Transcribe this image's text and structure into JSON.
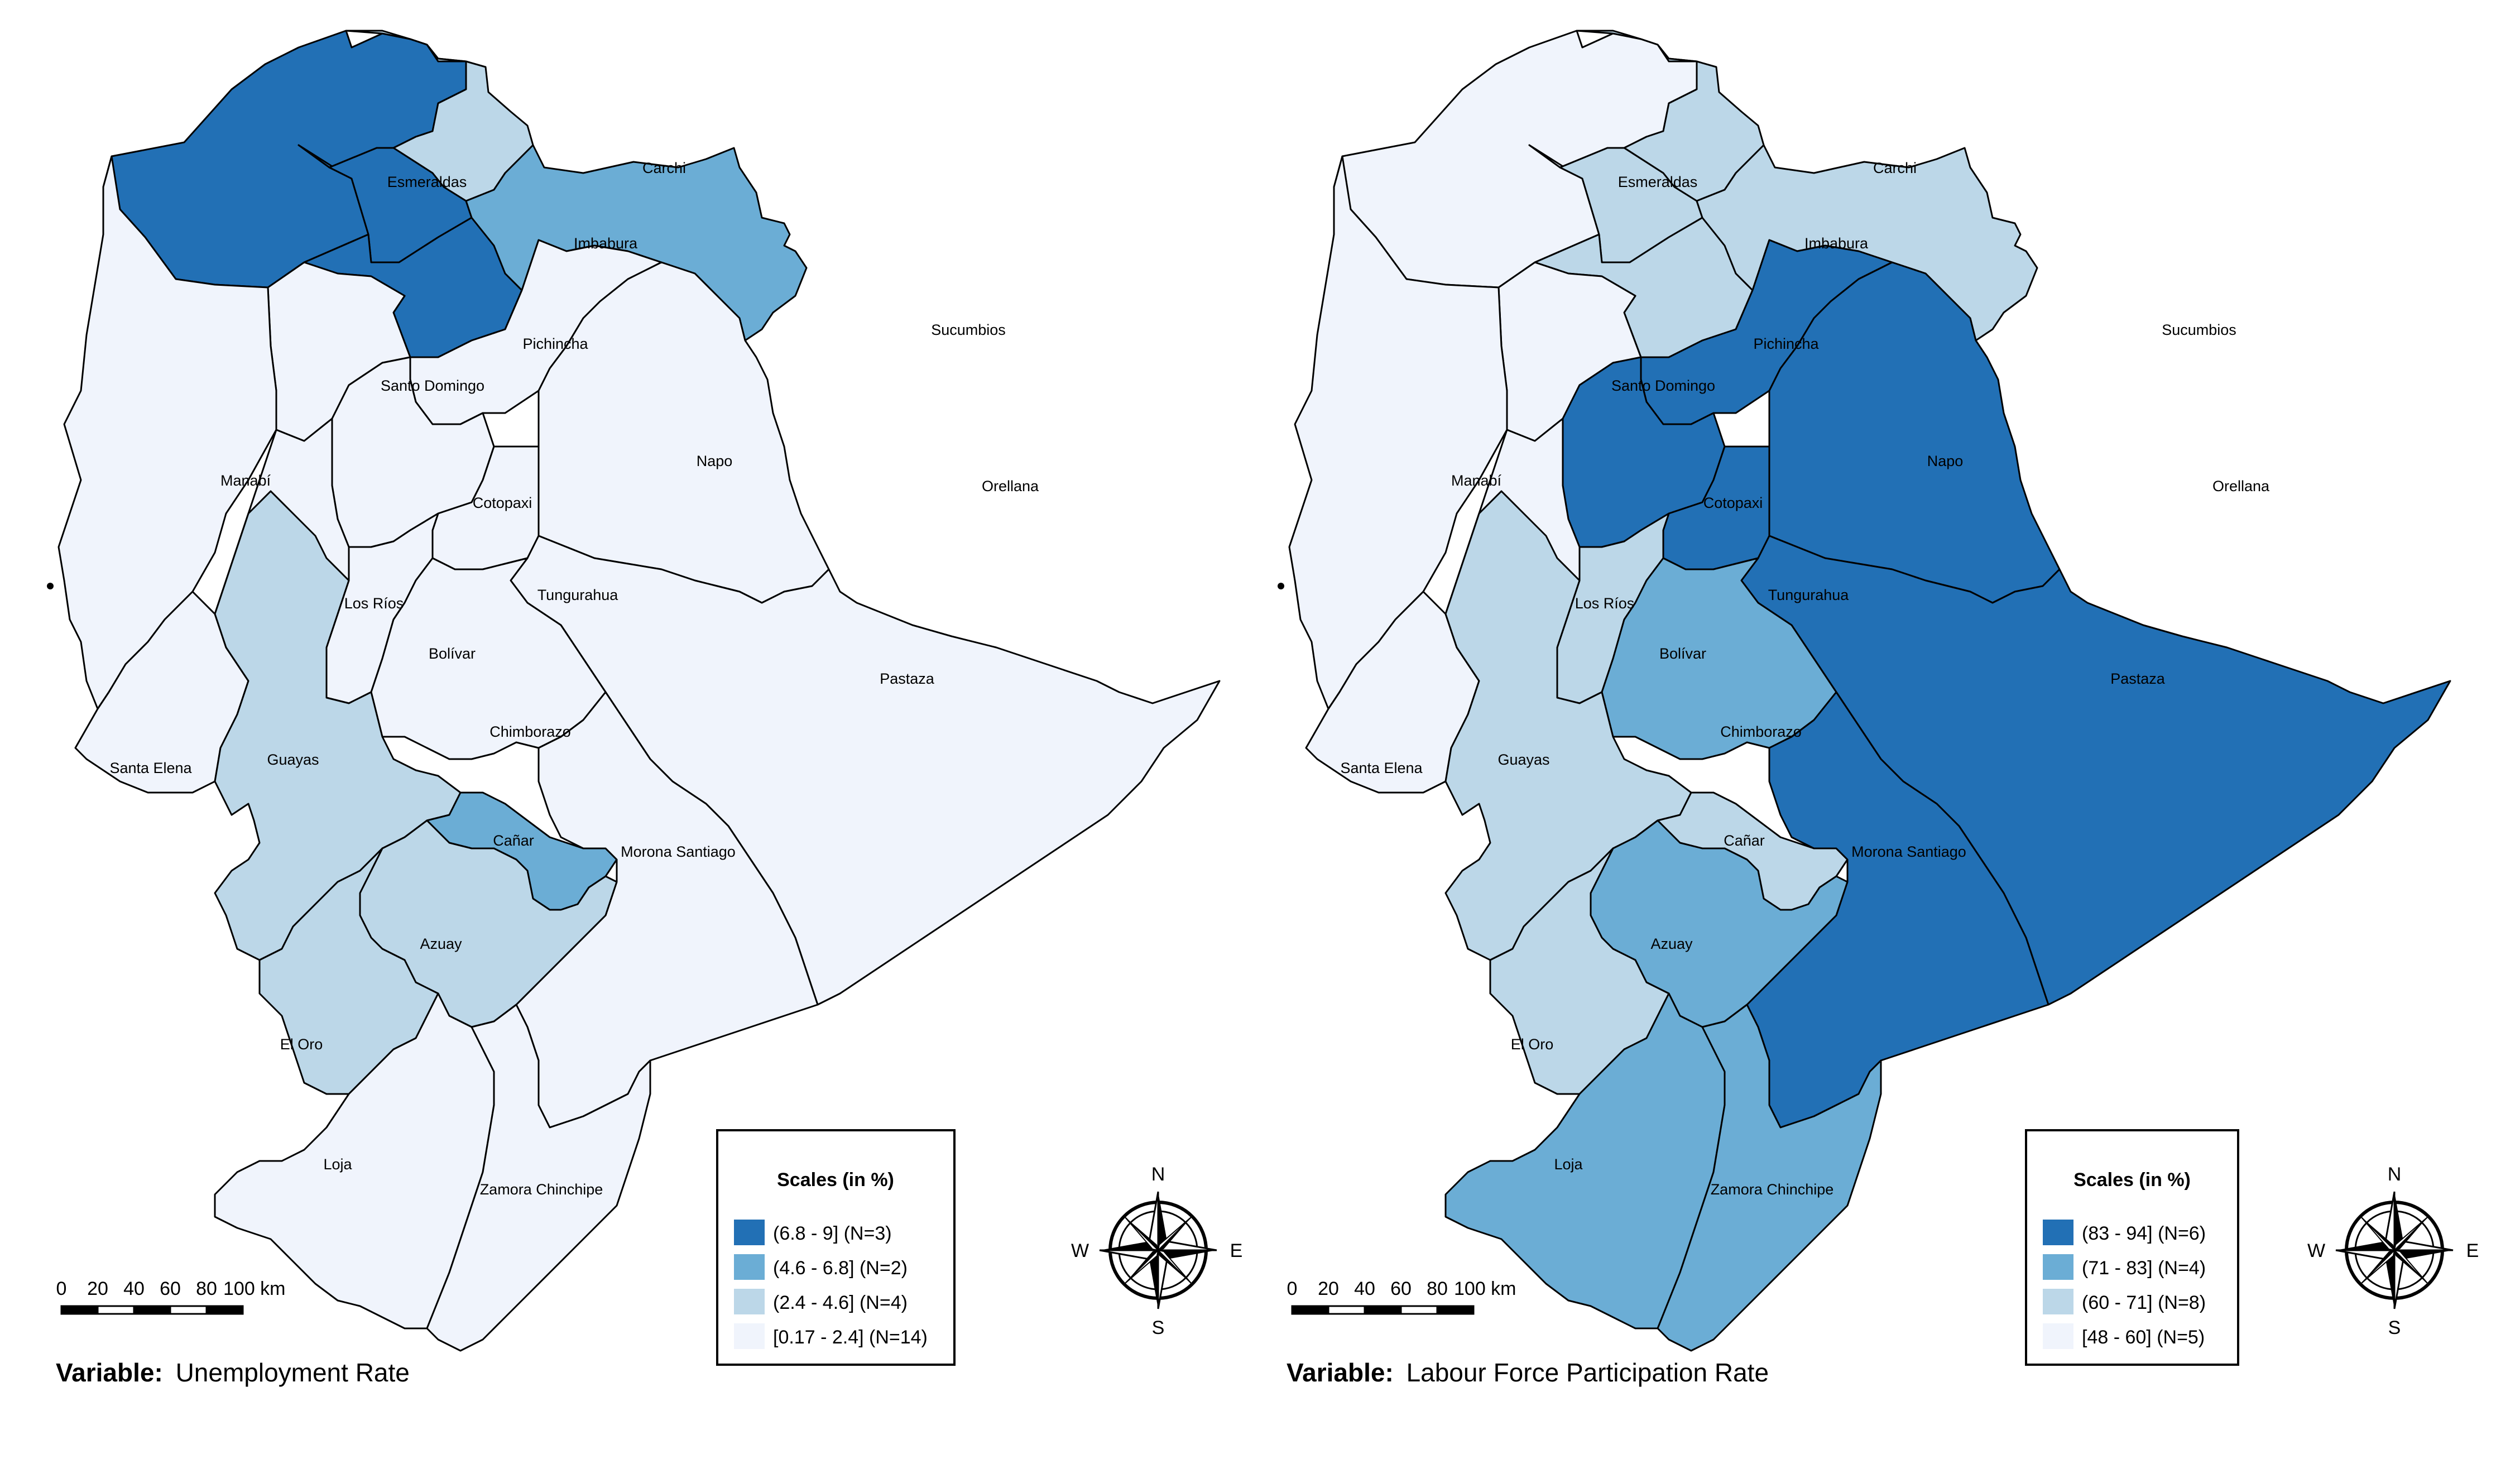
{
  "classes": {
    "c1": "#f0f4fc",
    "c2": "#bcd7e8",
    "c3": "#6badd5",
    "c4": "#2270b5"
  },
  "maps": [
    {
      "variable_label": "Variable:",
      "variable_name": "Unemployment Rate",
      "legend": {
        "title": "Scales (in %)",
        "entries": [
          {
            "label": "(6.8 - 9] (N=3)",
            "color": "#2270b5"
          },
          {
            "label": "(4.6 - 6.8] (N=2)",
            "color": "#6badd5"
          },
          {
            "label": "(2.4 - 4.6] (N=4)",
            "color": "#bcd7e8"
          },
          {
            "label": "[0.17 - 2.4] (N=14)",
            "color": "#f0f4fc"
          }
        ]
      },
      "scale_ticks": [
        "0",
        "20",
        "40",
        "60",
        "80",
        "100 km"
      ],
      "compass": {
        "n": "N",
        "s": "S",
        "e": "E",
        "w": "W"
      },
      "provinces": {
        "esmeraldas": {
          "name": "Esmeraldas",
          "class": "c4"
        },
        "carchi": {
          "name": "Carchi",
          "class": "c2"
        },
        "imbabura": {
          "name": "Imbabura",
          "class": "c4"
        },
        "pichincha": {
          "name": "Pichincha",
          "class": "c4"
        },
        "sucumbios": {
          "name": "Sucumbios",
          "class": "c3"
        },
        "santodomingo": {
          "name": "Santo Domingo",
          "class": "c1"
        },
        "manabi": {
          "name": "Manabí",
          "class": "c1"
        },
        "napo": {
          "name": "Napo",
          "class": "c1"
        },
        "orellana": {
          "name": "Orellana",
          "class": "c1"
        },
        "cotopaxi": {
          "name": "Cotopaxi",
          "class": "c1"
        },
        "losrios": {
          "name": "Los Ríos",
          "class": "c1"
        },
        "tungurahua": {
          "name": "Tungurahua",
          "class": "c1"
        },
        "bolivar": {
          "name": "Bolívar",
          "class": "c1"
        },
        "pastaza": {
          "name": "Pastaza",
          "class": "c1"
        },
        "chimborazo": {
          "name": "Chimborazo",
          "class": "c1"
        },
        "santaelena": {
          "name": "Santa Elena",
          "class": "c1"
        },
        "guayas": {
          "name": "Guayas",
          "class": "c2"
        },
        "canar": {
          "name": "Cañar",
          "class": "c3"
        },
        "morona": {
          "name": "Morona Santiago",
          "class": "c1"
        },
        "azuay": {
          "name": "Azuay",
          "class": "c2"
        },
        "eloro": {
          "name": "El Oro",
          "class": "c2"
        },
        "loja": {
          "name": "Loja",
          "class": "c1"
        },
        "zamora": {
          "name": "Zamora Chinchipe",
          "class": "c1"
        }
      }
    },
    {
      "variable_label": "Variable:",
      "variable_name": "Labour Force Participation Rate",
      "legend": {
        "title": "Scales (in %)",
        "entries": [
          {
            "label": "(83 - 94] (N=6)",
            "color": "#2270b5"
          },
          {
            "label": "(71 - 83] (N=4)",
            "color": "#6badd5"
          },
          {
            "label": "(60 - 71] (N=8)",
            "color": "#bcd7e8"
          },
          {
            "label": "[48 - 60] (N=5)",
            "color": "#f0f4fc"
          }
        ]
      },
      "scale_ticks": [
        "0",
        "20",
        "40",
        "60",
        "80",
        "100 km"
      ],
      "compass": {
        "n": "N",
        "s": "S",
        "e": "E",
        "w": "W"
      },
      "provinces": {
        "esmeraldas": {
          "name": "Esmeraldas",
          "class": "c1"
        },
        "carchi": {
          "name": "Carchi",
          "class": "c2"
        },
        "imbabura": {
          "name": "Imbabura",
          "class": "c2"
        },
        "pichincha": {
          "name": "Pichincha",
          "class": "c2"
        },
        "sucumbios": {
          "name": "Sucumbios",
          "class": "c2"
        },
        "santodomingo": {
          "name": "Santo Domingo",
          "class": "c1"
        },
        "manabi": {
          "name": "Manabí",
          "class": "c1"
        },
        "napo": {
          "name": "Napo",
          "class": "c4"
        },
        "orellana": {
          "name": "Orellana",
          "class": "c4"
        },
        "cotopaxi": {
          "name": "Cotopaxi",
          "class": "c4"
        },
        "losrios": {
          "name": "Los Ríos",
          "class": "c1"
        },
        "tungurahua": {
          "name": "Tungurahua",
          "class": "c4"
        },
        "bolivar": {
          "name": "Bolívar",
          "class": "c2"
        },
        "pastaza": {
          "name": "Pastaza",
          "class": "c4"
        },
        "chimborazo": {
          "name": "Chimborazo",
          "class": "c3"
        },
        "santaelena": {
          "name": "Santa Elena",
          "class": "c1"
        },
        "guayas": {
          "name": "Guayas",
          "class": "c2"
        },
        "canar": {
          "name": "Cañar",
          "class": "c2"
        },
        "morona": {
          "name": "Morona Santiago",
          "class": "c4"
        },
        "azuay": {
          "name": "Azuay",
          "class": "c3"
        },
        "eloro": {
          "name": "El Oro",
          "class": "c2"
        },
        "loja": {
          "name": "Loja",
          "class": "c3"
        },
        "zamora": {
          "name": "Zamora Chinchipe",
          "class": "c3"
        }
      }
    }
  ]
}
